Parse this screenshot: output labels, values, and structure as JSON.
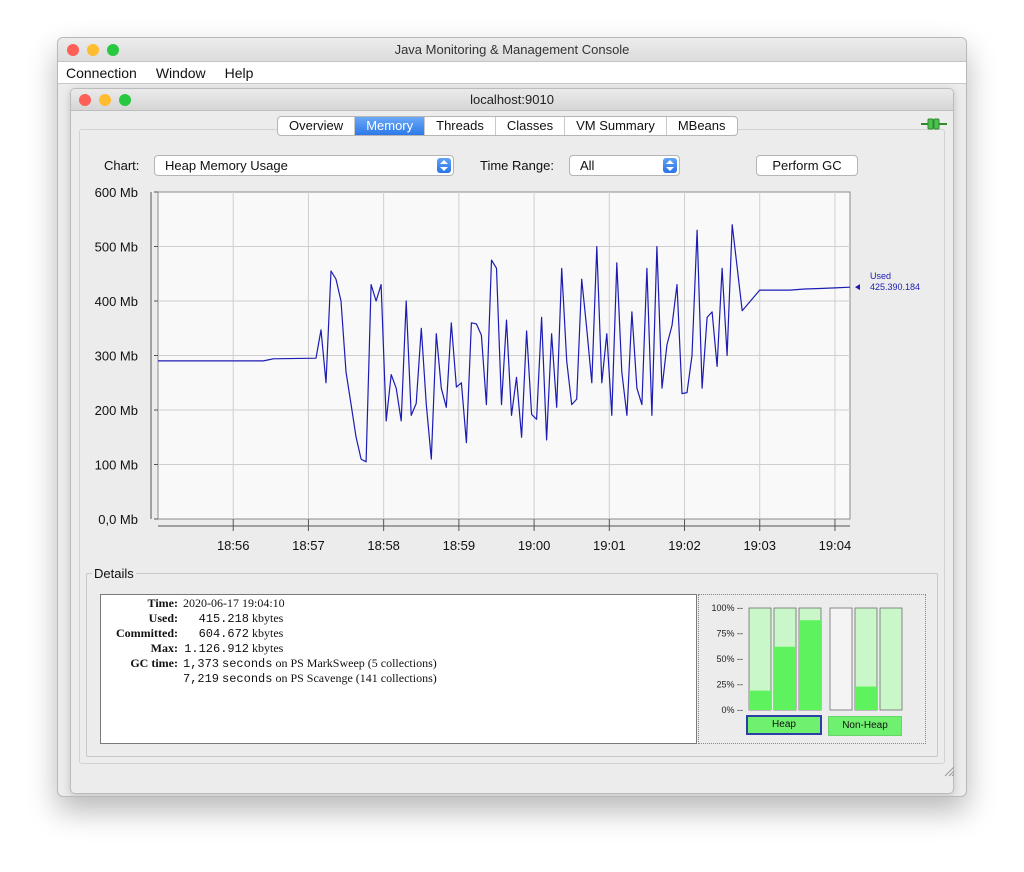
{
  "window": {
    "title": "Java Monitoring & Management Console",
    "menu": [
      "Connection",
      "Window",
      "Help"
    ]
  },
  "inner": {
    "title": "localhost:9010",
    "tabs": [
      "Overview",
      "Memory",
      "Threads",
      "Classes",
      "VM Summary",
      "MBeans"
    ],
    "active_tab": "Memory"
  },
  "controls": {
    "chart_label": "Chart:",
    "chart_value": "Heap Memory Usage",
    "time_range_label": "Time Range:",
    "time_range_value": "All",
    "perform_gc": "Perform GC"
  },
  "colors": {
    "line": "#1c1cb4",
    "bar_used": "#5ef25e",
    "bar_empty": "#c9f7c9",
    "accent": "#2d79e8"
  },
  "chart_data": {
    "type": "line",
    "y_ticks": [
      "0,0 Mb",
      "100 Mb",
      "200 Mb",
      "300 Mb",
      "400 Mb",
      "500 Mb",
      "600 Mb"
    ],
    "ylim": [
      0,
      600
    ],
    "x_ticks": [
      "18:56",
      "18:57",
      "18:58",
      "18:59",
      "19:00",
      "19:01",
      "19:02",
      "19:03",
      "19:04"
    ],
    "xlim": [
      "18:55:00",
      "19:04:12"
    ],
    "grid": true,
    "legend": {
      "name": "Used",
      "value": "425.390.184"
    },
    "series": [
      {
        "name": "Used",
        "x": [
          "18:55:00",
          "18:56:24",
          "18:56:28",
          "18:56:32",
          "18:57:06",
          "18:57:10",
          "18:57:14",
          "18:57:18",
          "18:57:22",
          "18:57:26",
          "18:57:30",
          "18:57:34",
          "18:57:38",
          "18:57:42",
          "18:57:46",
          "18:57:50",
          "18:57:54",
          "18:57:58",
          "18:58:02",
          "18:58:06",
          "18:58:10",
          "18:58:14",
          "18:58:18",
          "18:58:22",
          "18:58:26",
          "18:58:30",
          "18:58:34",
          "18:58:38",
          "18:58:42",
          "18:58:46",
          "18:58:50",
          "18:58:54",
          "18:58:58",
          "18:59:02",
          "18:59:06",
          "18:59:10",
          "18:59:14",
          "18:59:18",
          "18:59:22",
          "18:59:26",
          "18:59:30",
          "18:59:34",
          "18:59:38",
          "18:59:42",
          "18:59:46",
          "18:59:50",
          "18:59:54",
          "18:59:58",
          "19:00:02",
          "19:00:06",
          "19:00:10",
          "19:00:14",
          "19:00:18",
          "19:00:22",
          "19:00:26",
          "19:00:30",
          "19:00:34",
          "19:00:38",
          "19:00:42",
          "19:00:46",
          "19:00:50",
          "19:00:54",
          "19:00:58",
          "19:01:02",
          "19:01:06",
          "19:01:10",
          "19:01:14",
          "19:01:18",
          "19:01:22",
          "19:01:26",
          "19:01:30",
          "19:01:34",
          "19:01:38",
          "19:01:42",
          "19:01:46",
          "19:01:50",
          "19:01:54",
          "19:01:58",
          "19:02:02",
          "19:02:06",
          "19:02:10",
          "19:02:14",
          "19:02:18",
          "19:02:22",
          "19:02:26",
          "19:02:30",
          "19:02:34",
          "19:02:38",
          "19:02:46",
          "19:03:00",
          "19:03:24",
          "19:03:36",
          "19:03:48",
          "19:04:00",
          "19:04:12"
        ],
        "values": [
          290,
          290,
          292,
          294,
          295,
          347,
          250,
          455,
          440,
          400,
          270,
          210,
          150,
          110,
          105,
          430,
          400,
          430,
          180,
          265,
          240,
          180,
          400,
          190,
          212,
          350,
          210,
          110,
          340,
          240,
          205,
          360,
          242,
          250,
          140,
          360,
          358,
          337,
          210,
          475,
          460,
          210,
          365,
          190,
          260,
          150,
          345,
          192,
          183,
          370,
          145,
          340,
          205,
          460,
          290,
          210,
          220,
          440,
          350,
          250,
          500,
          250,
          340,
          190,
          470,
          270,
          190,
          380,
          240,
          210,
          460,
          190,
          500,
          240,
          320,
          355,
          430,
          230,
          232,
          300,
          530,
          240,
          370,
          380,
          280,
          460,
          300,
          540,
          382,
          420,
          420,
          422,
          423,
          424,
          425.4
        ]
      }
    ]
  },
  "details": {
    "legend": "Details",
    "time_label": "Time:",
    "time_value": "2020-06-17 19:04:10",
    "used_label": "Used:",
    "used_num": "415.218",
    "used_unit": "kbytes",
    "committed_label": "Committed:",
    "committed_num": "604.672",
    "committed_unit": "kbytes",
    "max_label": "Max:",
    "max_num": "1.126.912",
    "max_unit": "kbytes",
    "gc_label": "GC time:",
    "gc1_num": "1,373",
    "gc1_seconds": "seconds",
    "gc1_desc": "on PS MarkSweep (5 collections)",
    "gc2_num": "7,219",
    "gc2_seconds": "seconds",
    "gc2_desc": "on PS Scavenge (141 collections)"
  },
  "pool_bars": {
    "ticks": [
      "100% --",
      "75% --",
      "50% --",
      "25% --",
      "0% --"
    ],
    "heap": [
      0.19,
      0.62,
      0.88
    ],
    "non_heap": [
      0.0,
      0.23,
      0.0
    ],
    "heap_label": "Heap",
    "non_heap_label": "Non-Heap"
  }
}
